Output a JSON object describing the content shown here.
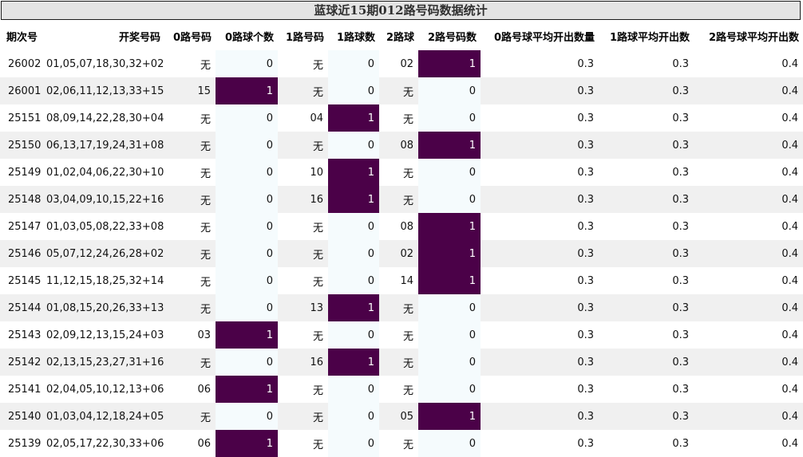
{
  "title": "蓝球近15期012路号码数据统计",
  "colors": {
    "highlight": "#4b0148",
    "title_bg": "#e4e4e4",
    "row_alt": "#f0f0f0",
    "count_col_bg": "#f5fbfd"
  },
  "headers": [
    "期次号",
    "开奖号码",
    "0路号码",
    "0路球个数",
    "1路号码",
    "1路球数",
    "2路球",
    "2路号码数",
    "0路号球平均开出数量",
    "1路球平均开出数",
    "2路号球平均开出数"
  ],
  "rows": [
    [
      "26002",
      "01,05,07,18,30,32+02",
      "无",
      "0",
      "无",
      "0",
      "02",
      "1",
      "0.3",
      "0.3",
      "0.4"
    ],
    [
      "26001",
      "02,06,11,12,13,33+15",
      "15",
      "1",
      "无",
      "0",
      "无",
      "0",
      "0.3",
      "0.3",
      "0.4"
    ],
    [
      "25151",
      "08,09,14,22,28,30+04",
      "无",
      "0",
      "04",
      "1",
      "无",
      "0",
      "0.3",
      "0.3",
      "0.4"
    ],
    [
      "25150",
      "06,13,17,19,24,31+08",
      "无",
      "0",
      "无",
      "0",
      "08",
      "1",
      "0.3",
      "0.3",
      "0.4"
    ],
    [
      "25149",
      "01,02,04,06,22,30+10",
      "无",
      "0",
      "10",
      "1",
      "无",
      "0",
      "0.3",
      "0.3",
      "0.4"
    ],
    [
      "25148",
      "03,04,09,10,15,22+16",
      "无",
      "0",
      "16",
      "1",
      "无",
      "0",
      "0.3",
      "0.3",
      "0.4"
    ],
    [
      "25147",
      "01,03,05,08,22,33+08",
      "无",
      "0",
      "无",
      "0",
      "08",
      "1",
      "0.3",
      "0.3",
      "0.4"
    ],
    [
      "25146",
      "05,07,12,24,26,28+02",
      "无",
      "0",
      "无",
      "0",
      "02",
      "1",
      "0.3",
      "0.3",
      "0.4"
    ],
    [
      "25145",
      "11,12,15,18,25,32+14",
      "无",
      "0",
      "无",
      "0",
      "14",
      "1",
      "0.3",
      "0.3",
      "0.4"
    ],
    [
      "25144",
      "01,08,15,20,26,33+13",
      "无",
      "0",
      "13",
      "1",
      "无",
      "0",
      "0.3",
      "0.3",
      "0.4"
    ],
    [
      "25143",
      "02,09,12,13,15,24+03",
      "03",
      "1",
      "无",
      "0",
      "无",
      "0",
      "0.3",
      "0.3",
      "0.4"
    ],
    [
      "25142",
      "02,13,15,23,27,31+16",
      "无",
      "0",
      "16",
      "1",
      "无",
      "0",
      "0.3",
      "0.3",
      "0.4"
    ],
    [
      "25141",
      "02,04,05,10,12,13+06",
      "06",
      "1",
      "无",
      "0",
      "无",
      "0",
      "0.3",
      "0.3",
      "0.4"
    ],
    [
      "25140",
      "01,03,04,12,18,24+05",
      "无",
      "0",
      "无",
      "0",
      "05",
      "1",
      "0.3",
      "0.3",
      "0.4"
    ],
    [
      "25139",
      "02,05,17,22,30,33+06",
      "06",
      "1",
      "无",
      "0",
      "无",
      "0",
      "0.3",
      "0.3",
      "0.4"
    ]
  ]
}
